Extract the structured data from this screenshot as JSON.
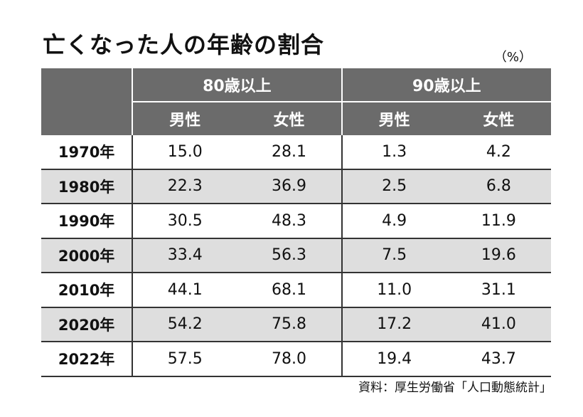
{
  "title": "亡くなった人の年齢の割合",
  "unit": "（%）",
  "source": "資料：厚生労働省「人口動態統計」",
  "chart_data": {
    "type": "table",
    "groups": [
      "80歳以上",
      "90歳以上"
    ],
    "subheaders": [
      "男性",
      "女性",
      "男性",
      "女性"
    ],
    "rows": [
      {
        "year": "1970年",
        "values": [
          "15.0",
          "28.1",
          "1.3",
          "4.2"
        ]
      },
      {
        "year": "1980年",
        "values": [
          "22.3",
          "36.9",
          "2.5",
          "6.8"
        ]
      },
      {
        "year": "1990年",
        "values": [
          "30.5",
          "48.3",
          "4.9",
          "11.9"
        ]
      },
      {
        "year": "2000年",
        "values": [
          "33.4",
          "56.3",
          "7.5",
          "19.6"
        ]
      },
      {
        "year": "2010年",
        "values": [
          "44.1",
          "68.1",
          "11.0",
          "31.1"
        ]
      },
      {
        "year": "2020年",
        "values": [
          "54.2",
          "75.8",
          "17.2",
          "41.0"
        ]
      },
      {
        "year": "2022年",
        "values": [
          "57.5",
          "78.0",
          "19.4",
          "43.7"
        ]
      }
    ]
  },
  "colors": {
    "header_bg": "#6b6b6b",
    "row_shade": "#dedede",
    "text": "#111111"
  }
}
